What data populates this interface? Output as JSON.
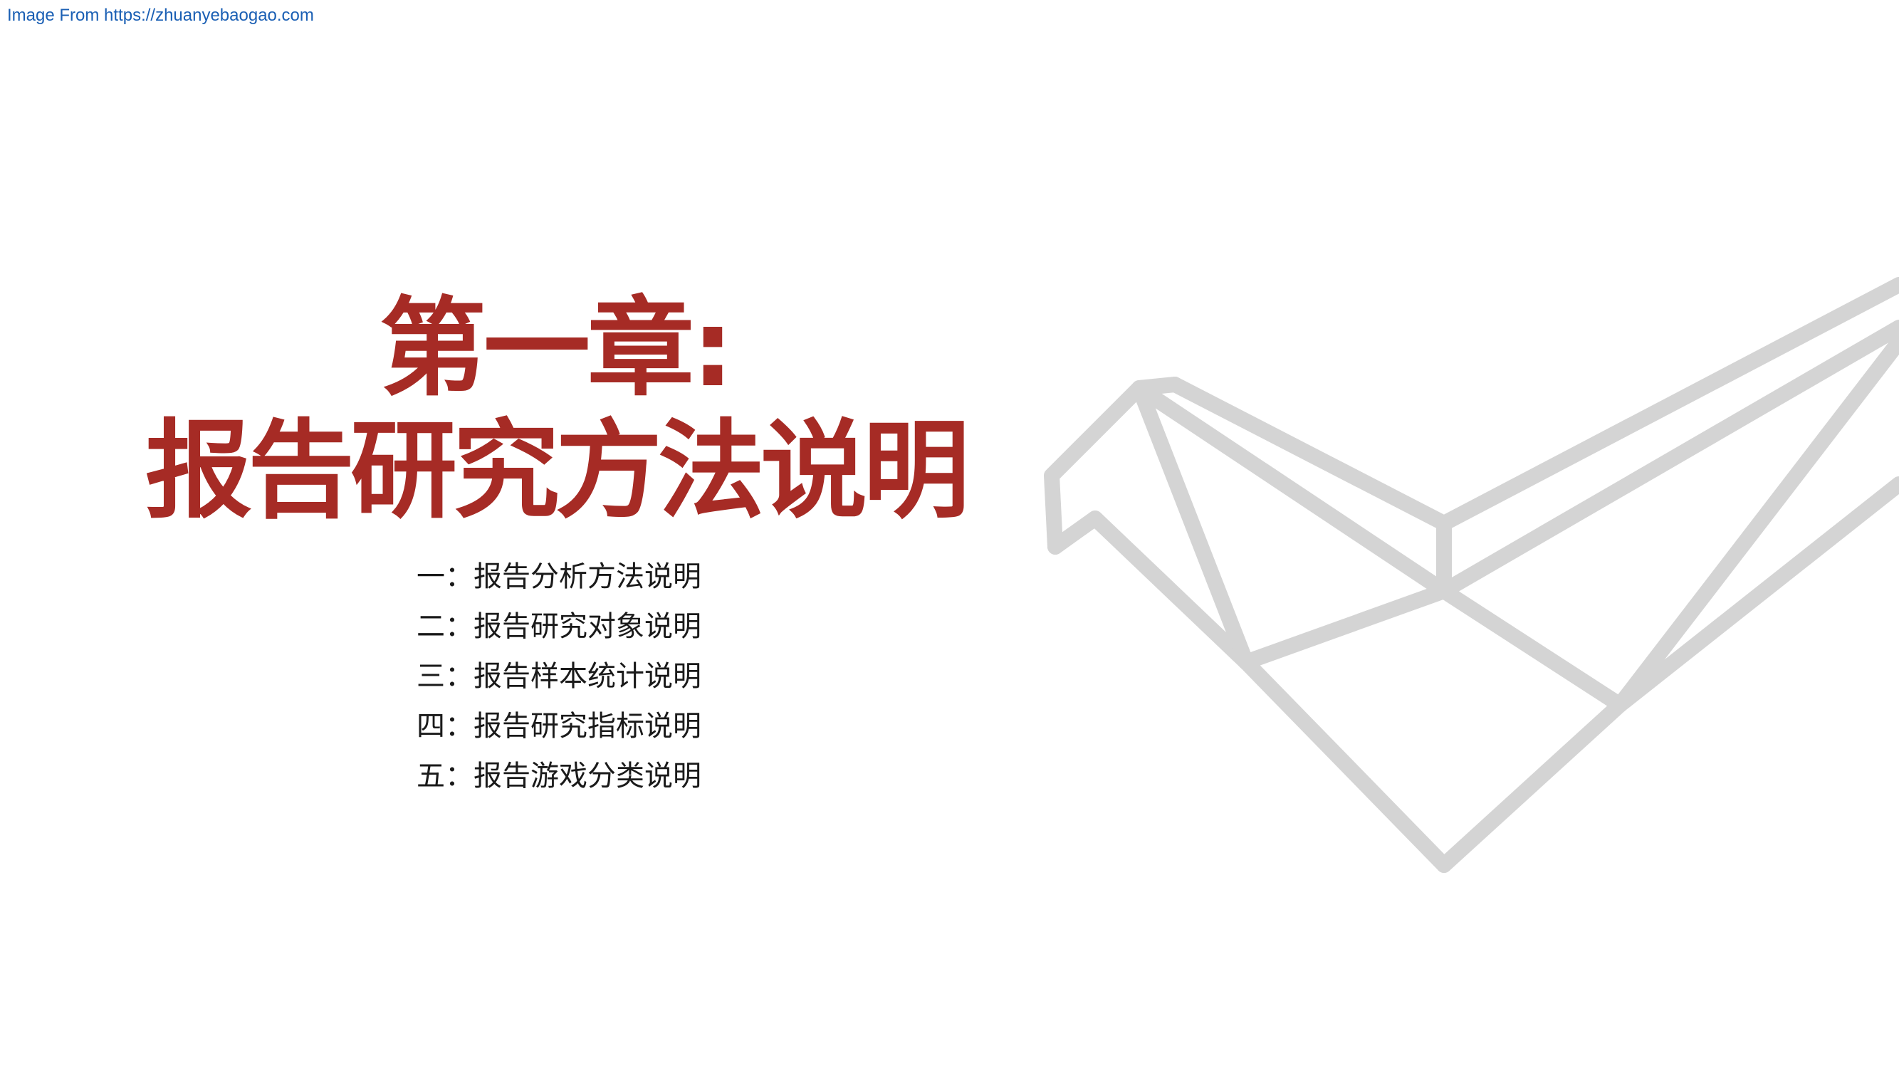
{
  "source": {
    "text": "Image From https://zhuanyebaogao.com"
  },
  "title": {
    "line1": "第一章:",
    "line2": "报告研究方法说明"
  },
  "toc": {
    "items": [
      "一：报告分析方法说明",
      "二：报告研究对象说明",
      "三：报告样本统计说明",
      "四：报告研究指标说明",
      "五：报告游戏分类说明"
    ]
  },
  "colors": {
    "title": "#a62b25",
    "link": "#1a5fb4",
    "graphic": "#d4d4d4",
    "text": "#1a1a1a"
  },
  "graphic": {
    "icon": "origami-bird-outline-icon"
  }
}
